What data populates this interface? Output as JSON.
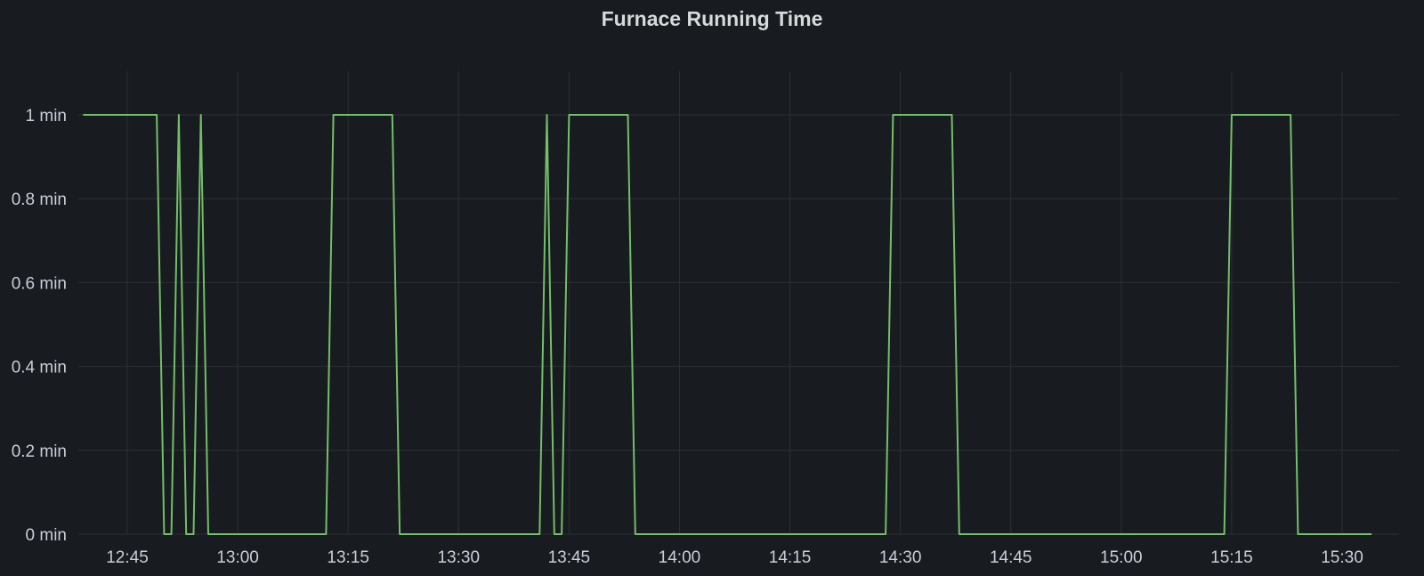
{
  "panel": {
    "title": "Furnace Running Time"
  },
  "colors": {
    "background": "#181b1f",
    "grid": "#2c2f35",
    "series": "#73bf69",
    "text": "#ccccdc"
  },
  "chart_data": {
    "type": "line",
    "title": "Furnace Running Time",
    "xlabel": "",
    "ylabel": "",
    "unit": "min",
    "grid": true,
    "legend": "none",
    "xlim": [
      "12:39",
      "15:34"
    ],
    "ylim": [
      0,
      1.1
    ],
    "x_ticks": [
      "12:45",
      "13:00",
      "13:15",
      "13:30",
      "13:45",
      "14:00",
      "14:15",
      "14:30",
      "14:45",
      "15:00",
      "15:15",
      "15:30"
    ],
    "y_ticks": [
      "0 min",
      "0.2 min",
      "0.4 min",
      "0.6 min",
      "0.8 min",
      "1 min"
    ],
    "y_tick_values": [
      0,
      0.2,
      0.4,
      0.6,
      0.8,
      1
    ],
    "series": [
      {
        "color": "#73bf69",
        "x": [
          "12:39",
          "12:49",
          "12:50",
          "12:51",
          "12:52",
          "12:53",
          "12:54",
          "12:55",
          "12:56",
          "13:12",
          "13:13",
          "13:21",
          "13:22",
          "13:41",
          "13:42",
          "13:43",
          "13:44",
          "13:45",
          "13:53",
          "13:54",
          "14:28",
          "14:29",
          "14:37",
          "14:38",
          "15:14",
          "15:15",
          "15:23",
          "15:24",
          "15:34"
        ],
        "values": [
          1,
          1,
          0,
          0,
          1,
          0,
          0,
          1,
          0,
          0,
          1,
          1,
          0,
          0,
          1,
          0,
          0,
          1,
          1,
          0,
          0,
          1,
          1,
          0,
          0,
          1,
          1,
          0,
          0
        ]
      }
    ]
  }
}
